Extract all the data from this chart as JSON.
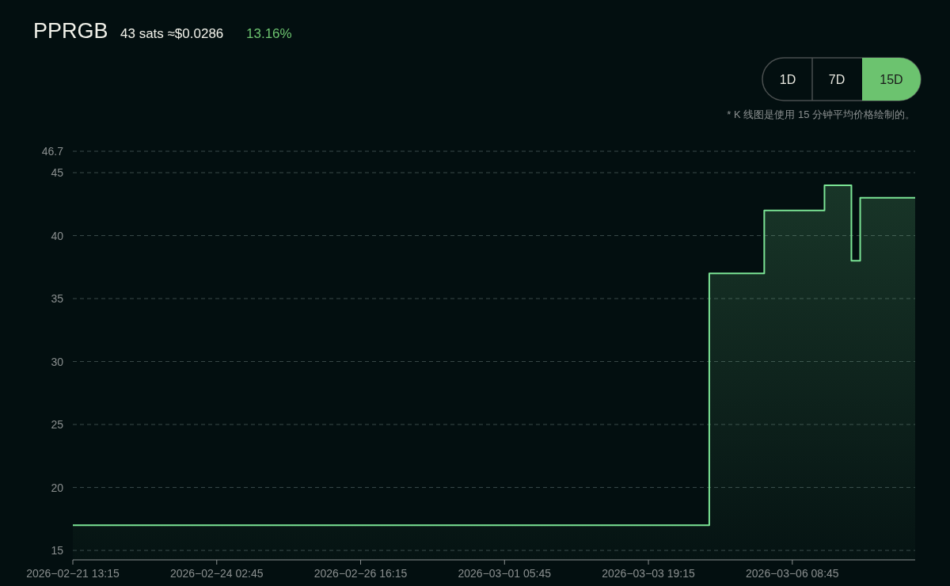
{
  "chart_data": {
    "type": "area",
    "title": "PPRGB",
    "subtitle": "43 sats ≈$0.0286",
    "annotations": [
      "13.16%",
      "1D",
      "7D",
      "15D",
      "* K 线图是使用 15 分钟平均价格绘制的。"
    ],
    "x": [
      "2026-02-21T13:15",
      "2026-03-04T21:15",
      "2026-03-04T21:15",
      "2026-03-05T20:45",
      "2026-03-05T20:45",
      "2026-03-06T22:30",
      "2026-03-06T22:30",
      "2026-03-07T10:00",
      "2026-03-07T10:00",
      "2026-03-07T13:45",
      "2026-03-07T13:45",
      "2026-03-08T13:15"
    ],
    "series": [
      {
        "color": "#7be495",
        "values": [
          17,
          17,
          37,
          37,
          42,
          42,
          44,
          44,
          38,
          38,
          43,
          43
        ]
      }
    ],
    "xlim": [
      "2026-02-21T13:15",
      "2026-03-08T13:15"
    ],
    "xticks": [
      {
        "value": "2026-02-21T13:15",
        "label": "2026−02−21 13:15"
      },
      {
        "value": "2026-02-24T02:45",
        "label": "2026−02−24 02:45"
      },
      {
        "value": "2026-02-26T16:15",
        "label": "2026−02−26 16:15"
      },
      {
        "value": "2026-03-01T05:45",
        "label": "2026−03−01 05:45"
      },
      {
        "value": "2026-03-03T19:15",
        "label": "2026−03−03 19:15"
      },
      {
        "value": "2026-03-06T08:45",
        "label": "2026−03−06 08:45"
      }
    ],
    "ylim": [
      14.25,
      46.7
    ],
    "yticks": [
      15,
      20,
      25,
      30,
      35,
      40,
      45,
      46.7
    ],
    "grid": "y"
  }
}
